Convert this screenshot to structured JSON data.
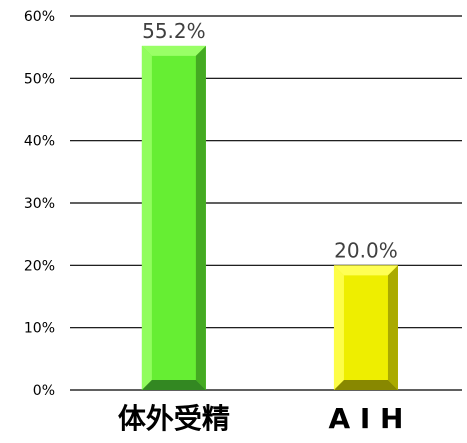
{
  "chart_data": {
    "type": "bar",
    "title": "",
    "xlabel": "",
    "ylabel": "",
    "categories": [
      "体外受精",
      "A I H"
    ],
    "values": [
      55.2,
      20.0
    ],
    "data_labels": [
      "55.2%",
      "20.0%"
    ],
    "ylim": [
      0,
      60
    ],
    "yticks": [
      0,
      10,
      20,
      30,
      40,
      50,
      60
    ],
    "ytick_labels": [
      "0%",
      "10%",
      "20%",
      "30%",
      "40%",
      "50%",
      "60%"
    ],
    "grid": true,
    "legend": "none",
    "bar_style": "beveled",
    "colors": {
      "bar_1": {
        "front": "#66ee33",
        "light": "#99ff66",
        "dark": "#44aa22",
        "bottom": "#338822"
      },
      "bar_2": {
        "front": "#eeee00",
        "light": "#ffff55",
        "dark": "#aaaa00",
        "bottom": "#888800"
      },
      "gridline": "#000000"
    }
  }
}
